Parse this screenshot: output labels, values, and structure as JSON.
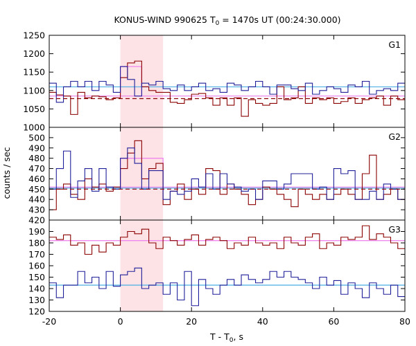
{
  "chart_data": {
    "type": "line",
    "title": "KONUS-WIND 990625 T",
    "title_sub": "0",
    "title_rest": " = 1470s UT (00:24:30.000)",
    "xlabel": "T - T",
    "xlabel_sub": "0",
    "xlabel_rest": ", s",
    "ylabel": "counts / sec",
    "xlim": [
      -20,
      80
    ],
    "x_ticks": [
      "-20",
      "0",
      "20",
      "40",
      "60",
      "80"
    ],
    "highlight_interval": [
      0,
      12
    ],
    "highlight_color": "#fde2e6",
    "series_colors": {
      "dark_red": "#8b0000",
      "dark_blue": "#1f1f99",
      "light_blue": "#5ab4e6",
      "pink": "#ee88ee"
    },
    "bin_edges": [
      -20,
      -18,
      -16,
      -14,
      -12,
      -10,
      -8,
      -6,
      -4,
      -2,
      0,
      2,
      4,
      6,
      8,
      10,
      12,
      14,
      16,
      18,
      20,
      22,
      24,
      26,
      28,
      30,
      32,
      34,
      36,
      38,
      40,
      42,
      44,
      46,
      48,
      50,
      52,
      54,
      56,
      58,
      60,
      62,
      64,
      66,
      68,
      70,
      72,
      74,
      76,
      78,
      80
    ],
    "panels": [
      {
        "label": "G1",
        "ylim": [
          1000,
          1250
        ],
        "y_ticks": [
          "1000",
          "1050",
          "1100",
          "1150",
          "1200",
          "1250"
        ],
        "series": [
          {
            "color": "dark_red",
            "values": [
              1095,
              1088,
              1085,
              1035,
              1095,
              1080,
              1085,
              1083,
              1075,
              1080,
              1135,
              1175,
              1180,
              1110,
              1100,
              1095,
              1095,
              1068,
              1065,
              1075,
              1090,
              1092,
              1080,
              1060,
              1080,
              1060,
              1080,
              1030,
              1075,
              1065,
              1060,
              1065,
              1110,
              1075,
              1080,
              1110,
              1065,
              1080,
              1075,
              1080,
              1065,
              1070,
              1080,
              1065,
              1075,
              1080,
              1085,
              1060,
              1085,
              1075
            ]
          },
          {
            "color": "dark_blue",
            "values": [
              1120,
              1068,
              1110,
              1125,
              1110,
              1125,
              1100,
              1125,
              1115,
              1095,
              1165,
              1130,
              1085,
              1120,
              1115,
              1125,
              1105,
              1100,
              1115,
              1100,
              1110,
              1120,
              1100,
              1105,
              1095,
              1120,
              1115,
              1100,
              1110,
              1125,
              1110,
              1090,
              1115,
              1115,
              1105,
              1100,
              1120,
              1090,
              1100,
              1110,
              1105,
              1095,
              1115,
              1110,
              1125,
              1090,
              1100,
              1105,
              1100,
              1120
            ]
          }
        ],
        "blue_level": 1110,
        "pink_level": 1085,
        "pink_box": {
          "x": [
            0,
            6
          ],
          "y": 1165
        },
        "red_dashed_level": 1078
      },
      {
        "label": "G2",
        "ylim": [
          420,
          510
        ],
        "y_ticks": [
          "420",
          "430",
          "440",
          "450",
          "460",
          "470",
          "480",
          "490",
          "500"
        ],
        "series": [
          {
            "color": "dark_red",
            "values": [
              430,
              450,
              455,
              445,
              440,
              460,
              452,
              455,
              448,
              452,
              470,
              485,
              497,
              460,
              470,
              475,
              435,
              448,
              455,
              440,
              450,
              445,
              470,
              468,
              445,
              455,
              450,
              445,
              435,
              440,
              452,
              450,
              445,
              440,
              433,
              450,
              445,
              440,
              445,
              440,
              445,
              450,
              445,
              440,
              465,
              483,
              440,
              445,
              450,
              440
            ]
          },
          {
            "color": "dark_blue",
            "values": [
              450,
              470,
              487,
              442,
              458,
              470,
              448,
              470,
              452,
              450,
              480,
              490,
              475,
              450,
              468,
              468,
              440,
              448,
              445,
              448,
              460,
              452,
              465,
              450,
              465,
              455,
              452,
              448,
              450,
              440,
              458,
              458,
              450,
              455,
              465,
              465,
              465,
              450,
              452,
              440,
              470,
              465,
              468,
              440,
              440,
              448,
              440,
              455,
              450,
              440
            ]
          }
        ],
        "blue_level": 451,
        "pink_level": 452,
        "pink_box": {
          "x": [
            0,
            12
          ],
          "y": 480
        },
        "red_dashed_level": 450
      },
      {
        "label": "G3",
        "ylim": [
          120,
          200
        ],
        "y_ticks": [
          "120",
          "130",
          "140",
          "150",
          "160",
          "170",
          "180",
          "190"
        ],
        "series": [
          {
            "color": "dark_red",
            "values": [
              185,
              183,
              187,
              178,
              180,
              170,
              178,
              172,
              180,
              178,
              185,
              190,
              188,
              192,
              180,
              175,
              185,
              182,
              178,
              183,
              187,
              178,
              183,
              185,
              182,
              175,
              180,
              178,
              185,
              180,
              178,
              180,
              175,
              185,
              180,
              178,
              185,
              188,
              175,
              180,
              178,
              185,
              183,
              185,
              195,
              183,
              188,
              185,
              180,
              175
            ]
          },
          {
            "color": "dark_blue",
            "values": [
              145,
              132,
              143,
              143,
              155,
              145,
              150,
              140,
              155,
              142,
              152,
              155,
              158,
              140,
              143,
              145,
              135,
              145,
              130,
              155,
              125,
              148,
              140,
              135,
              143,
              148,
              143,
              152,
              148,
              145,
              148,
              155,
              150,
              155,
              150,
              148,
              145,
              140,
              150,
              143,
              147,
              135,
              145,
              140,
              132,
              145,
              140,
              135,
              143,
              133
            ]
          }
        ],
        "blue_level": 143,
        "pink_level": 182
      }
    ]
  }
}
